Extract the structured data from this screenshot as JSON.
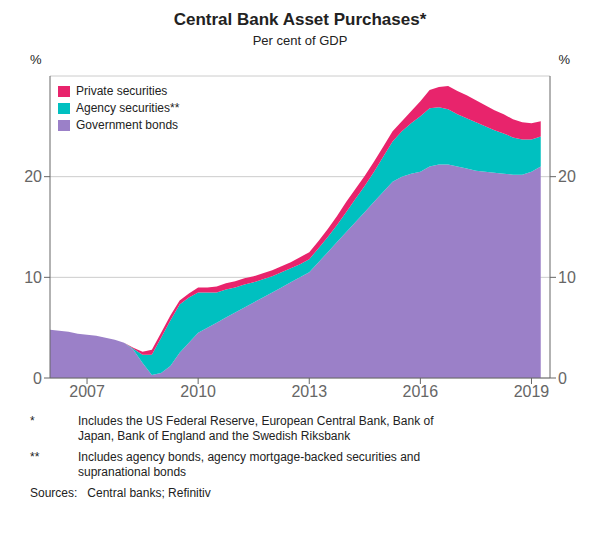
{
  "chart_data": {
    "type": "area",
    "stacked": true,
    "title": "Central Bank Asset Purchases*",
    "subtitle": "Per cent of GDP",
    "ylabel": "%",
    "y2label": "%",
    "grid": true,
    "legend": "upper left",
    "xlim": [
      2006.0,
      2019.5
    ],
    "xticks": [
      2007,
      2010,
      2013,
      2016,
      2019
    ],
    "ylim": [
      0,
      30
    ],
    "yticks": [
      0,
      10,
      20
    ],
    "y2lim": [
      0,
      30
    ],
    "y2ticks": [
      0,
      10,
      20
    ],
    "footnotes": [
      {
        "mark": "*",
        "text": "Includes the US Federal Reserve, European Central Bank, Bank of\nJapan, Bank of England and the Swedish Riksbank"
      },
      {
        "mark": "**",
        "text": "Includes agency bonds, agency mortgage-backed securities and\nsupranational bonds"
      }
    ],
    "sources": "Sources:   Central banks; Refinitiv",
    "x": [
      2006.0,
      2006.25,
      2006.5,
      2006.75,
      2007.0,
      2007.25,
      2007.5,
      2007.75,
      2008.0,
      2008.25,
      2008.5,
      2008.75,
      2009.0,
      2009.25,
      2009.5,
      2009.75,
      2010.0,
      2010.25,
      2010.5,
      2010.75,
      2011.0,
      2011.25,
      2011.5,
      2011.75,
      2012.0,
      2012.25,
      2012.5,
      2012.75,
      2013.0,
      2013.25,
      2013.5,
      2013.75,
      2014.0,
      2014.25,
      2014.5,
      2014.75,
      2015.0,
      2015.25,
      2015.5,
      2015.75,
      2016.0,
      2016.25,
      2016.5,
      2016.75,
      2017.0,
      2017.25,
      2017.5,
      2017.75,
      2018.0,
      2018.25,
      2018.5,
      2018.75,
      2019.0,
      2019.25
    ],
    "series": [
      {
        "name": "Government bonds",
        "color": "#9B80C8",
        "values": [
          4.8,
          4.7,
          4.6,
          4.4,
          4.3,
          4.2,
          4.0,
          3.8,
          3.5,
          2.8,
          1.5,
          0.3,
          0.5,
          1.2,
          2.5,
          3.5,
          4.5,
          5.0,
          5.5,
          6.0,
          6.5,
          7.0,
          7.5,
          8.0,
          8.5,
          9.0,
          9.5,
          10.0,
          10.5,
          11.5,
          12.5,
          13.5,
          14.5,
          15.5,
          16.5,
          17.5,
          18.5,
          19.5,
          20.0,
          20.3,
          20.5,
          21.0,
          21.2,
          21.2,
          21.0,
          20.8,
          20.6,
          20.5,
          20.4,
          20.3,
          20.2,
          20.2,
          20.5,
          21.0
        ]
      },
      {
        "name": "Agency securities**",
        "color": "#00C0C0",
        "values": [
          0.0,
          0.0,
          0.0,
          0.0,
          0.0,
          0.0,
          0.0,
          0.0,
          0.0,
          0.1,
          0.8,
          2.0,
          3.5,
          4.5,
          4.8,
          4.5,
          4.0,
          3.5,
          3.0,
          2.8,
          2.5,
          2.3,
          2.0,
          1.8,
          1.6,
          1.5,
          1.4,
          1.3,
          1.3,
          1.4,
          1.5,
          1.7,
          2.0,
          2.3,
          2.6,
          3.0,
          3.5,
          4.0,
          4.5,
          5.0,
          5.5,
          5.8,
          5.7,
          5.5,
          5.2,
          5.0,
          4.8,
          4.5,
          4.2,
          4.0,
          3.7,
          3.5,
          3.2,
          3.0
        ]
      },
      {
        "name": "Private securities",
        "color": "#E8246C",
        "values": [
          0.0,
          0.0,
          0.0,
          0.0,
          0.0,
          0.0,
          0.0,
          0.0,
          0.0,
          0.1,
          0.3,
          0.5,
          0.5,
          0.5,
          0.4,
          0.4,
          0.5,
          0.5,
          0.6,
          0.6,
          0.6,
          0.6,
          0.6,
          0.6,
          0.6,
          0.6,
          0.6,
          0.7,
          0.7,
          0.7,
          0.8,
          0.9,
          1.0,
          1.0,
          1.0,
          1.0,
          1.0,
          1.0,
          1.0,
          1.2,
          1.5,
          1.8,
          2.0,
          2.3,
          2.3,
          2.3,
          2.2,
          2.1,
          2.0,
          1.9,
          1.8,
          1.7,
          1.6,
          1.5
        ]
      }
    ]
  }
}
